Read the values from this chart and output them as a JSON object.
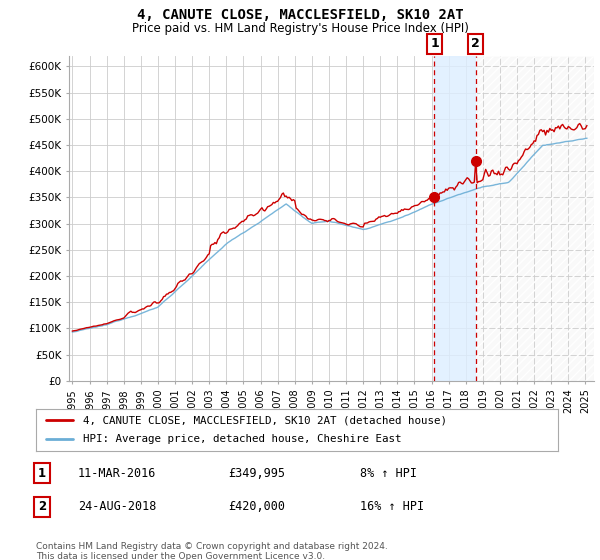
{
  "title": "4, CANUTE CLOSE, MACCLESFIELD, SK10 2AT",
  "subtitle": "Price paid vs. HM Land Registry's House Price Index (HPI)",
  "hpi_color": "#6baed6",
  "price_color": "#cc0000",
  "sale1_year": 2016.17,
  "sale1_price": 349995,
  "sale2_year": 2018.58,
  "sale2_price": 420000,
  "sale1_date": "11-MAR-2016",
  "sale1_price_str": "£349,995",
  "sale1_hpi": "8% ↑ HPI",
  "sale2_date": "24-AUG-2018",
  "sale2_price_str": "£420,000",
  "sale2_hpi": "16% ↑ HPI",
  "legend1": "4, CANUTE CLOSE, MACCLESFIELD, SK10 2AT (detached house)",
  "legend2": "HPI: Average price, detached house, Cheshire East",
  "footnote": "Contains HM Land Registry data © Crown copyright and database right 2024.\nThis data is licensed under the Open Government Licence v3.0.",
  "shade_color": "#ddeeff",
  "hatch_color": "#e8e8e8",
  "ylim": [
    0,
    620000
  ],
  "xlim_start": 1994.8,
  "xlim_end": 2025.5
}
